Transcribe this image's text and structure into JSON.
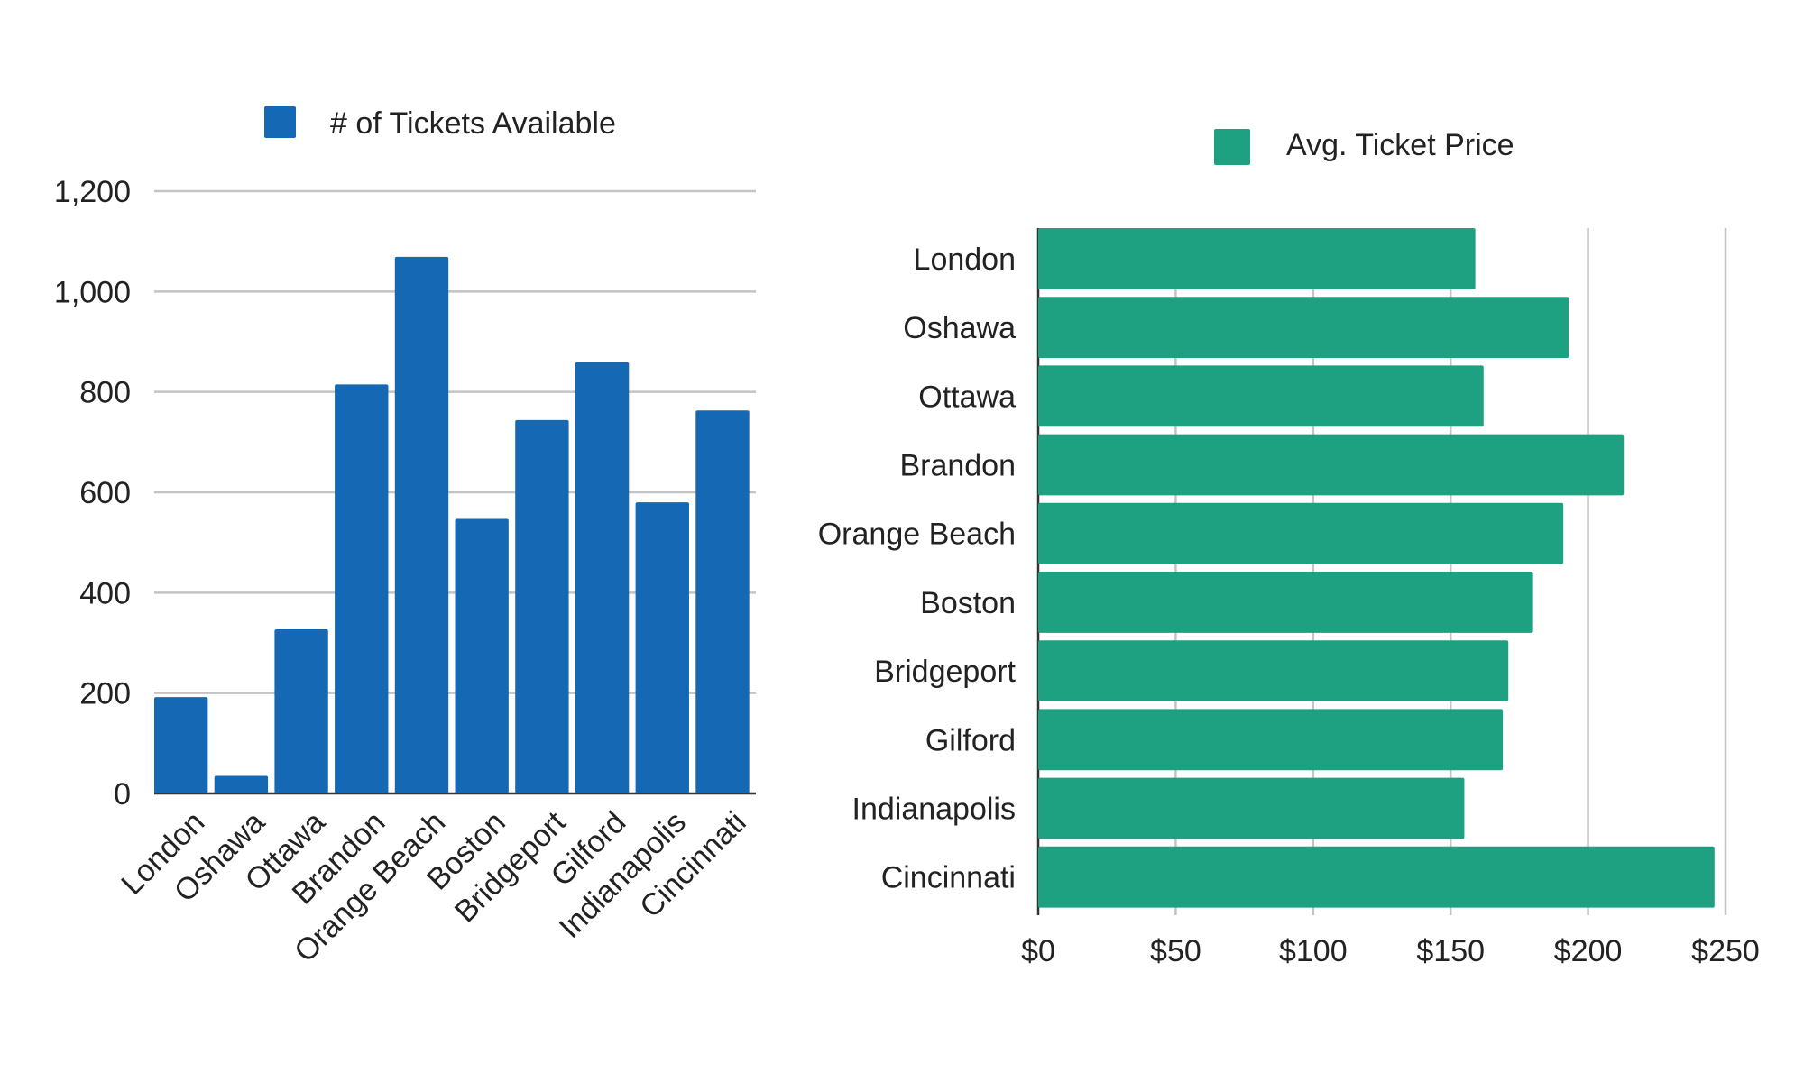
{
  "colors": {
    "bar_blue": "#1569b4",
    "bar_green": "#1ea181",
    "grid": "#c4c4c4",
    "axis": "#333333",
    "text": "#222222"
  },
  "chart_data": [
    {
      "type": "bar",
      "orientation": "vertical",
      "title": "",
      "legend": [
        "# of Tickets Available"
      ],
      "legend_position": "top",
      "categories": [
        "London",
        "Oshawa",
        "Ottawa",
        "Brandon",
        "Orange Beach",
        "Boston",
        "Bridgeport",
        "Gilford",
        "Indianapolis",
        "Cincinnati"
      ],
      "series": [
        {
          "name": "# of Tickets Available",
          "values": [
            192,
            35,
            327,
            815,
            1069,
            547,
            744,
            859,
            580,
            763
          ]
        }
      ],
      "ylim": [
        0,
        1200
      ],
      "yticks": [
        0,
        200,
        400,
        600,
        800,
        1000,
        1200
      ],
      "ytick_labels": [
        "0",
        "200",
        "400",
        "600",
        "800",
        "1,000",
        "1,200"
      ],
      "grid": true,
      "xlabel": "",
      "ylabel": ""
    },
    {
      "type": "bar",
      "orientation": "horizontal",
      "title": "",
      "legend": [
        "Avg. Ticket Price"
      ],
      "legend_position": "top",
      "categories": [
        "London",
        "Oshawa",
        "Ottawa",
        "Brandon",
        "Orange Beach",
        "Boston",
        "Bridgeport",
        "Gilford",
        "Indianapolis",
        "Cincinnati"
      ],
      "series": [
        {
          "name": "Avg. Ticket Price",
          "values": [
            159,
            193,
            162,
            213,
            191,
            180,
            171,
            169,
            155,
            246
          ]
        }
      ],
      "xlim": [
        0,
        250
      ],
      "xticks": [
        0,
        50,
        100,
        150,
        200,
        250
      ],
      "xtick_labels": [
        "$0",
        "$50",
        "$100",
        "$150",
        "$200",
        "$250"
      ],
      "grid": true,
      "xlabel": "",
      "ylabel": ""
    }
  ]
}
